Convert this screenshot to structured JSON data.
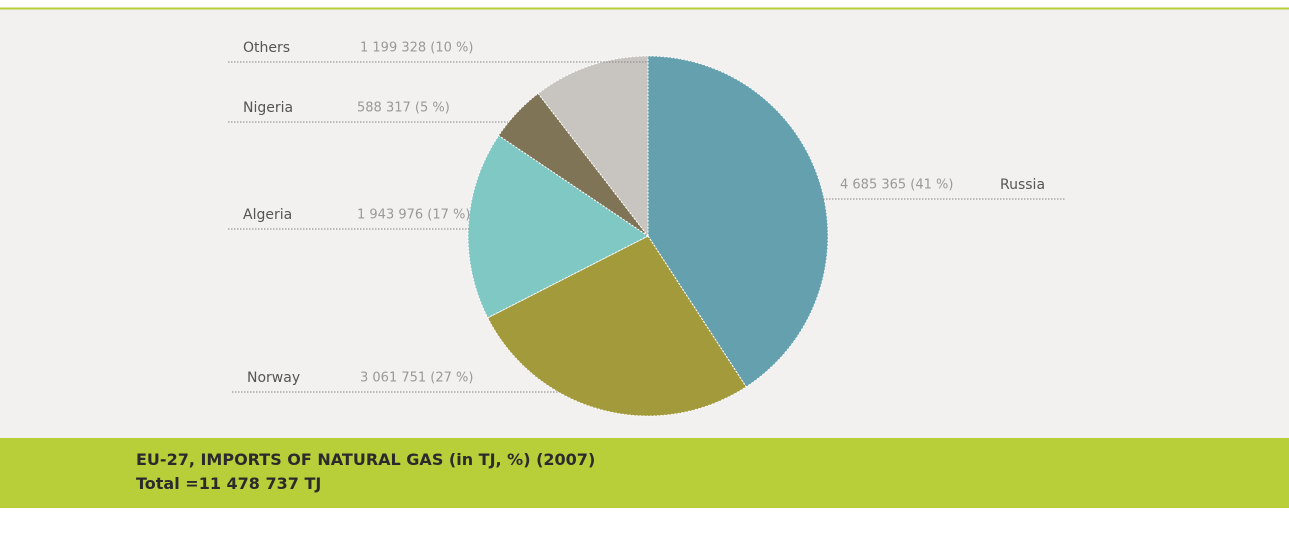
{
  "chart_data": {
    "type": "pie",
    "title": "EU-27, IMPORTS OF NATURAL GAS (in TJ, %) (2007)",
    "subtitle": "Total =11 478 737 TJ",
    "categories": [
      "Russia",
      "Norway",
      "Algeria",
      "Nigeria",
      "Others"
    ],
    "values": [
      4685365,
      3061751,
      1943976,
      588317,
      1199328
    ],
    "value_labels": [
      "4 685 365 (41 %)",
      "3 061 751 (27 %)",
      "1 943 976 (17 %)",
      "588 317 (5 %)",
      "1 199 328 (10 %)"
    ],
    "colors": [
      "#65a0ae",
      "#a39a3c",
      "#7fc8c3",
      "#807456",
      "#c8c4bf"
    ]
  }
}
